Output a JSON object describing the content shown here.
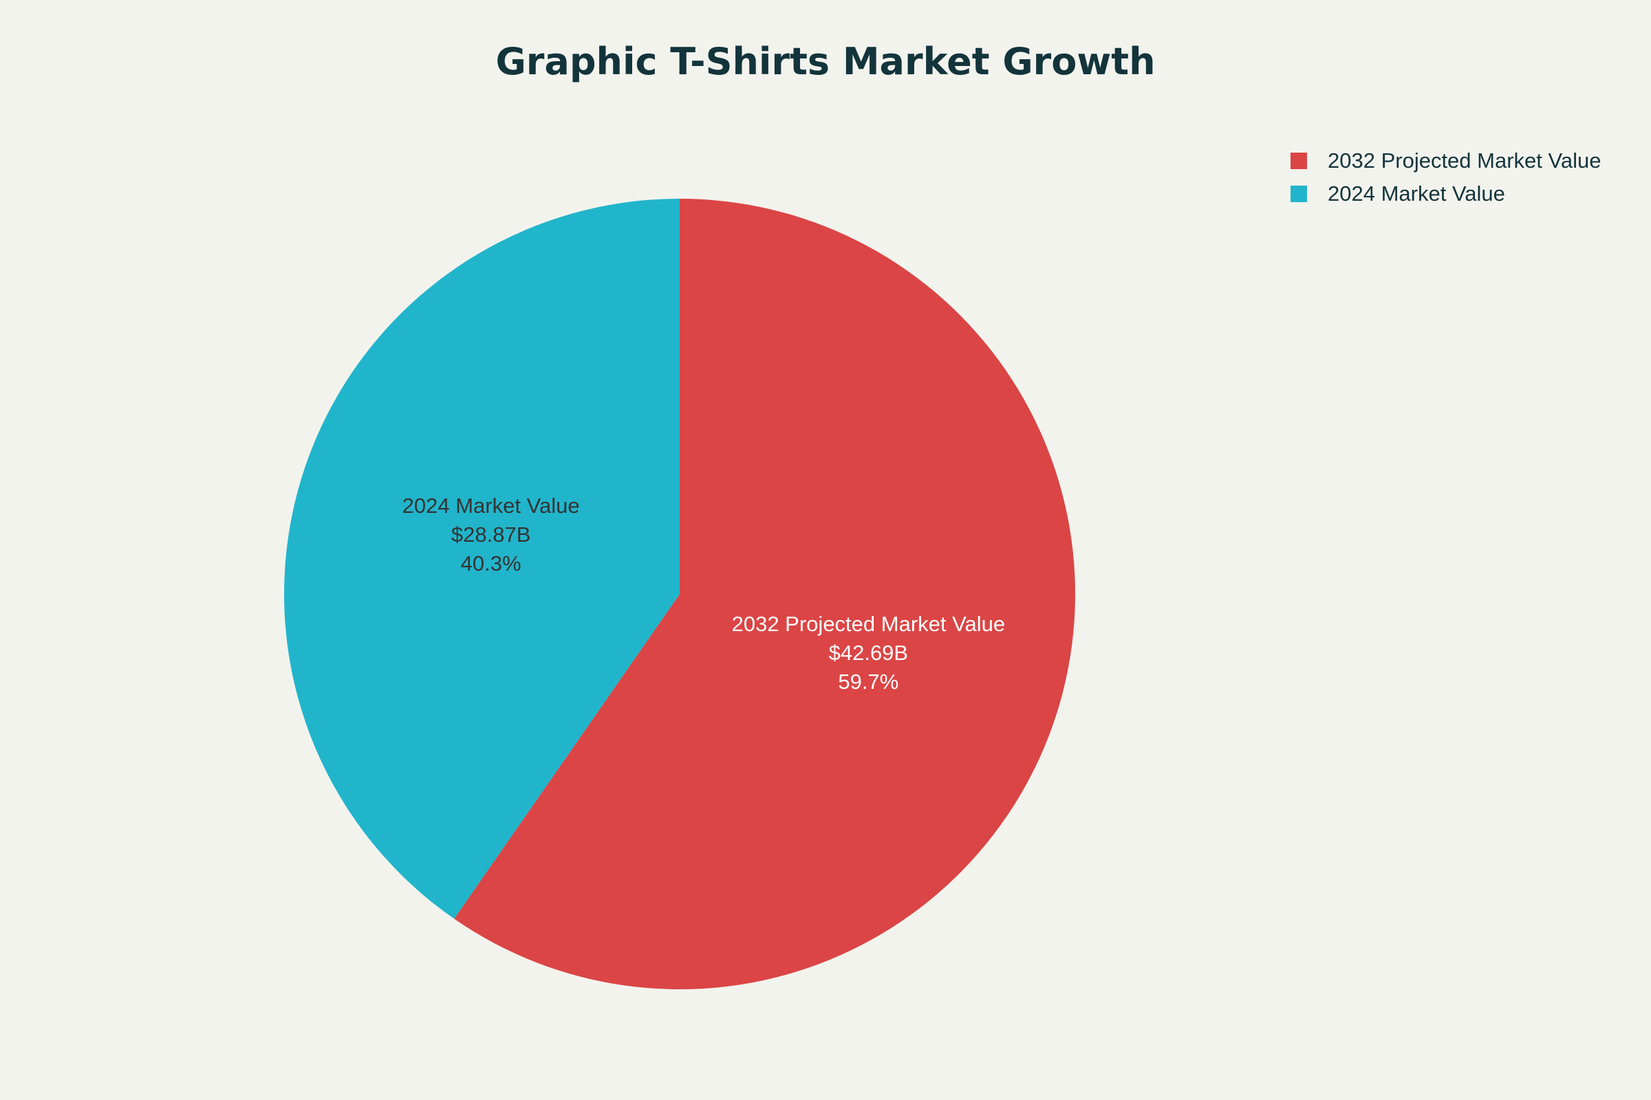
{
  "chart_data": {
    "type": "pie",
    "title": "Graphic T-Shirts Market Growth",
    "slices": [
      {
        "label": "2032 Projected Market Value",
        "value": 42.69,
        "value_text": "$42.69B",
        "percent_text": "59.7%",
        "color": "#db4545",
        "label_color": "#ffffff"
      },
      {
        "label": "2024 Market Value",
        "value": 28.87,
        "value_text": "$28.87B",
        "percent_text": "40.3%",
        "color": "#21b5cb",
        "label_color": "#333333"
      }
    ],
    "legend_placement": "top-right",
    "start_angle": "12 o'clock",
    "direction": "clockwise"
  },
  "colors": {
    "background": "#f3f3ee",
    "title": "#13343b"
  }
}
